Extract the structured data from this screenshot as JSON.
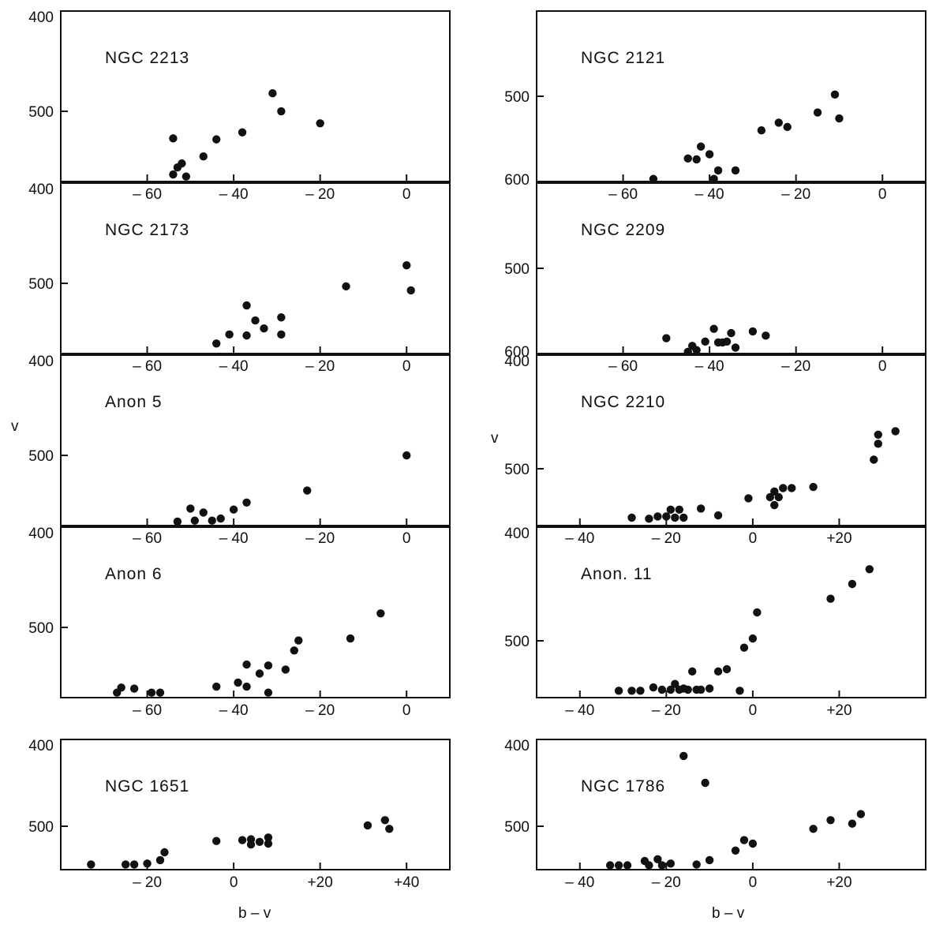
{
  "figure": {
    "left_ylabel": "v",
    "right_ylabel": "v",
    "left_xlabel": "b – v",
    "right_xlabel": "b – v"
  },
  "chart_data": [
    {
      "type": "scatter",
      "title": "NGC 2213",
      "xlim": [
        -80,
        10
      ],
      "ylim": [
        400,
        570
      ],
      "xticks": [
        -60,
        -40,
        -20,
        0
      ],
      "xtick_labels": [
        "– 60",
        "– 40",
        "– 20",
        "0"
      ],
      "yticks": [
        400,
        500
      ],
      "ytick_labels": [
        "400",
        "500"
      ],
      "points": [
        [
          -54,
          527
        ],
        [
          -53,
          556
        ],
        [
          -52,
          552
        ],
        [
          -54,
          563
        ],
        [
          -51,
          565
        ],
        [
          -47,
          545
        ],
        [
          -44,
          528
        ],
        [
          -38,
          521
        ],
        [
          -31,
          482
        ],
        [
          -29,
          500
        ],
        [
          -20,
          512
        ]
      ]
    },
    {
      "type": "scatter",
      "title": "NGC 2121",
      "xlim": [
        -80,
        10
      ],
      "ylim": [
        400,
        600
      ],
      "xticks": [
        -60,
        -40,
        -20,
        0
      ],
      "xtick_labels": [
        "– 60",
        "– 40",
        "– 20",
        "0"
      ],
      "yticks": [
        500,
        600
      ],
      "ytick_labels": [
        "500",
        "600"
      ],
      "points": [
        [
          -53,
          597
        ],
        [
          -45,
          573
        ],
        [
          -43,
          574
        ],
        [
          -42,
          559
        ],
        [
          -40,
          568
        ],
        [
          -39,
          597
        ],
        [
          -38,
          587
        ],
        [
          -34,
          587
        ],
        [
          -28,
          540
        ],
        [
          -24,
          531
        ],
        [
          -22,
          536
        ],
        [
          -15,
          519
        ],
        [
          -11,
          498
        ],
        [
          -10,
          526
        ]
      ]
    },
    {
      "type": "scatter",
      "title": "NGC 2173",
      "xlim": [
        -80,
        10
      ],
      "ylim": [
        400,
        570
      ],
      "xticks": [
        -60,
        -40,
        -20,
        0
      ],
      "xtick_labels": [
        "– 60",
        "– 40",
        "– 20",
        "0"
      ],
      "yticks": [
        400,
        500
      ],
      "ytick_labels": [
        "400",
        "500"
      ],
      "points": [
        [
          -44,
          560
        ],
        [
          -41,
          551
        ],
        [
          -37,
          552
        ],
        [
          -37,
          522
        ],
        [
          -35,
          537
        ],
        [
          -33,
          545
        ],
        [
          -29,
          534
        ],
        [
          -29,
          551
        ],
        [
          -14,
          503
        ],
        [
          0,
          482
        ],
        [
          1,
          507
        ]
      ]
    },
    {
      "type": "scatter",
      "title": "NGC 2209",
      "xlim": [
        -80,
        10
      ],
      "ylim": [
        400,
        600
      ],
      "xticks": [
        -60,
        -40,
        -20,
        0
      ],
      "xtick_labels": [
        "– 60",
        "– 40",
        "– 20",
        "0"
      ],
      "yticks": [
        500,
        600
      ],
      "ytick_labels": [
        "500",
        "600"
      ],
      "points": [
        [
          -50,
          582
        ],
        [
          -45,
          598
        ],
        [
          -44,
          591
        ],
        [
          -43,
          596
        ],
        [
          -41,
          586
        ],
        [
          -39,
          571
        ],
        [
          -38,
          587
        ],
        [
          -37,
          587
        ],
        [
          -36,
          586
        ],
        [
          -35,
          576
        ],
        [
          -34,
          593
        ],
        [
          -30,
          574
        ],
        [
          -27,
          579
        ]
      ]
    },
    {
      "type": "scatter",
      "title": "Anon 5",
      "xlim": [
        -80,
        10
      ],
      "ylim": [
        400,
        570
      ],
      "xticks": [
        -60,
        -40,
        -20,
        0
      ],
      "xtick_labels": [
        "– 60",
        "– 40",
        "– 20",
        "0"
      ],
      "yticks": [
        400,
        500
      ],
      "ytick_labels": [
        "400",
        "500"
      ],
      "points": [
        [
          -53,
          566
        ],
        [
          -50,
          553
        ],
        [
          -49,
          565
        ],
        [
          -47,
          557
        ],
        [
          -45,
          565
        ],
        [
          -43,
          563
        ],
        [
          -40,
          554
        ],
        [
          -37,
          547
        ],
        [
          -23,
          535
        ],
        [
          0,
          500
        ]
      ]
    },
    {
      "type": "scatter",
      "title": "NGC 2210",
      "xlim": [
        -50,
        40
      ],
      "ylim": [
        400,
        550
      ],
      "xticks": [
        -40,
        -20,
        0,
        20
      ],
      "xtick_labels": [
        "– 40",
        "– 20",
        "0",
        "+20"
      ],
      "yticks": [
        400,
        500
      ],
      "ytick_labels": [
        "400",
        "500"
      ],
      "points": [
        [
          -28,
          543
        ],
        [
          -24,
          544
        ],
        [
          -22,
          542
        ],
        [
          -20,
          542
        ],
        [
          -19,
          536
        ],
        [
          -18,
          543
        ],
        [
          -17,
          536
        ],
        [
          -16,
          543
        ],
        [
          -12,
          535
        ],
        [
          -8,
          541
        ],
        [
          -1,
          526
        ],
        [
          4,
          525
        ],
        [
          5,
          532
        ],
        [
          5,
          520
        ],
        [
          6,
          525
        ],
        [
          7,
          517
        ],
        [
          9,
          517
        ],
        [
          14,
          516
        ],
        [
          28,
          492
        ],
        [
          29,
          478
        ],
        [
          29,
          470
        ],
        [
          33,
          467
        ]
      ]
    },
    {
      "type": "scatter",
      "title": "Anon 6",
      "xlim": [
        -80,
        10
      ],
      "ylim": [
        400,
        570
      ],
      "xticks": [
        -60,
        -40,
        -20,
        0
      ],
      "xtick_labels": [
        "– 60",
        "– 40",
        "– 20",
        "0"
      ],
      "yticks": [
        400,
        500
      ],
      "ytick_labels": [
        "400",
        "500"
      ],
      "points": [
        [
          -67,
          565
        ],
        [
          -66,
          560
        ],
        [
          -63,
          561
        ],
        [
          -59,
          565
        ],
        [
          -57,
          565
        ],
        [
          -44,
          559
        ],
        [
          -39,
          555
        ],
        [
          -37,
          537
        ],
        [
          -37,
          559
        ],
        [
          -34,
          546
        ],
        [
          -32,
          565
        ],
        [
          -32,
          538
        ],
        [
          -28,
          542
        ],
        [
          -26,
          523
        ],
        [
          -25,
          513
        ],
        [
          -13,
          511
        ],
        [
          -6,
          486
        ]
      ]
    },
    {
      "type": "scatter",
      "title": "Anon. 11",
      "xlim": [
        -50,
        40
      ],
      "ylim": [
        400,
        550
      ],
      "xticks": [
        -40,
        -20,
        0,
        20
      ],
      "xtick_labels": [
        "– 40",
        "– 20",
        "0",
        "+20"
      ],
      "yticks": [
        400,
        500
      ],
      "ytick_labels": [
        "400",
        "500"
      ],
      "points": [
        [
          -31,
          544
        ],
        [
          -28,
          544
        ],
        [
          -26,
          544
        ],
        [
          -23,
          541
        ],
        [
          -21,
          543
        ],
        [
          -19,
          543
        ],
        [
          -18,
          538
        ],
        [
          -17,
          543
        ],
        [
          -16,
          542
        ],
        [
          -15,
          543
        ],
        [
          -14,
          527
        ],
        [
          -13,
          543
        ],
        [
          -12,
          543
        ],
        [
          -10,
          542
        ],
        [
          -8,
          527
        ],
        [
          -6,
          525
        ],
        [
          -3,
          544
        ],
        [
          -2,
          506
        ],
        [
          0,
          498
        ],
        [
          1,
          475
        ],
        [
          18,
          463
        ],
        [
          23,
          450
        ],
        [
          27,
          437
        ]
      ]
    },
    {
      "type": "scatter",
      "title": "NGC 1651",
      "xlim": [
        -40,
        50
      ],
      "ylim": [
        400,
        550
      ],
      "xticks": [
        -20,
        0,
        20,
        40
      ],
      "xtick_labels": [
        "– 20",
        "0",
        "+20",
        "+40"
      ],
      "yticks": [
        400,
        500
      ],
      "ytick_labels": [
        "400",
        "500"
      ],
      "points": [
        [
          -33,
          544
        ],
        [
          -25,
          544
        ],
        [
          -23,
          544
        ],
        [
          -20,
          543
        ],
        [
          -17,
          539
        ],
        [
          -16,
          530
        ],
        [
          -4,
          517
        ],
        [
          2,
          516
        ],
        [
          4,
          521
        ],
        [
          4,
          515
        ],
        [
          6,
          518
        ],
        [
          8,
          513
        ],
        [
          8,
          520
        ],
        [
          31,
          499
        ],
        [
          35,
          493
        ],
        [
          36,
          503
        ]
      ]
    },
    {
      "type": "scatter",
      "title": "NGC 1786",
      "xlim": [
        -50,
        40
      ],
      "ylim": [
        400,
        550
      ],
      "xticks": [
        -40,
        -20,
        0,
        20
      ],
      "xtick_labels": [
        "– 40",
        "– 20",
        "0",
        "+20"
      ],
      "yticks": [
        400,
        500
      ],
      "ytick_labels": [
        "400",
        "500"
      ],
      "points": [
        [
          -33,
          545
        ],
        [
          -31,
          545
        ],
        [
          -29,
          545
        ],
        [
          -25,
          540
        ],
        [
          -24,
          545
        ],
        [
          -22,
          538
        ],
        [
          -21,
          545
        ],
        [
          -19,
          543
        ],
        [
          -16,
          419
        ],
        [
          -13,
          544
        ],
        [
          -11,
          450
        ],
        [
          -10,
          539
        ],
        [
          -4,
          528
        ],
        [
          -2,
          516
        ],
        [
          0,
          520
        ],
        [
          14,
          503
        ],
        [
          18,
          493
        ],
        [
          23,
          497
        ],
        [
          25,
          486
        ]
      ]
    }
  ]
}
